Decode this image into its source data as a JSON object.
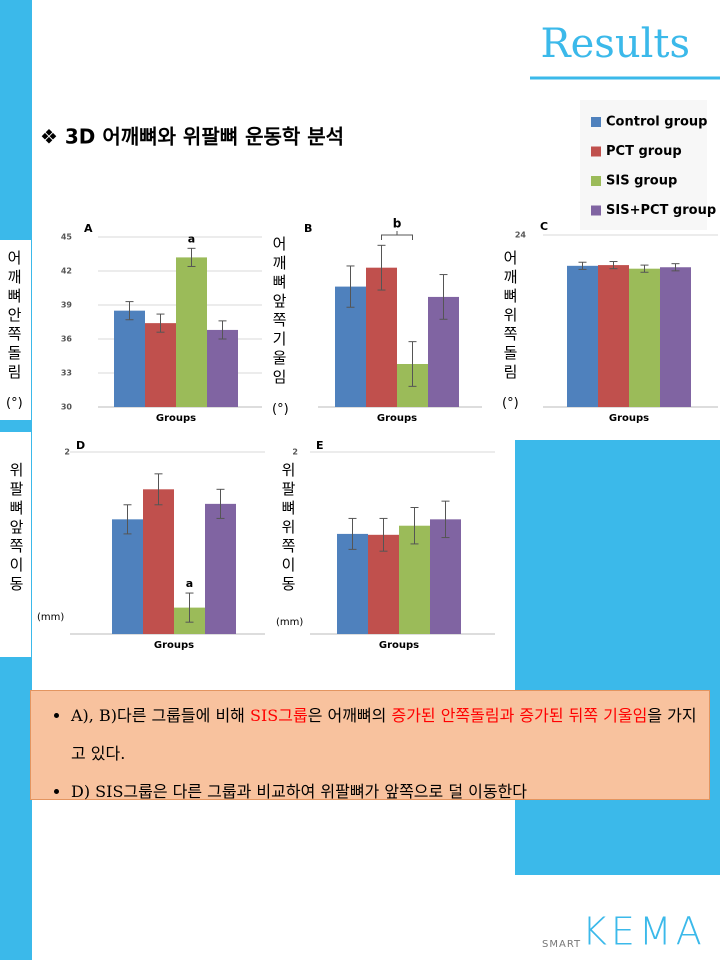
{
  "header": {
    "title": "Results"
  },
  "heading": "❖ 3D 어깨뼈와 위팔뼈 운동학 분석",
  "groups": [
    {
      "name": "Control group",
      "color": "#4f81bd"
    },
    {
      "name": "PCT group",
      "color": "#c0504d"
    },
    {
      "name": "SIS group",
      "color": "#9bbb59"
    },
    {
      "name": "SIS+PCT group",
      "color": "#8064a2"
    }
  ],
  "chart_data": [
    {
      "type": "bar",
      "panel": "A",
      "ylabel": "어깨뼈안쪽돌림",
      "yunit": "(°)",
      "xlabel": "Groups",
      "values": [
        38.5,
        37.4,
        43.2,
        36.8
      ],
      "errors": [
        0.8,
        0.8,
        0.8,
        0.8
      ],
      "ylim": [
        30,
        45
      ],
      "yticks": [
        30,
        33,
        36,
        39,
        42,
        45
      ],
      "grid": true,
      "annotations": [
        {
          "text": "a",
          "groups": [
            2
          ]
        }
      ]
    },
    {
      "type": "bar",
      "panel": "B",
      "ylabel": "어깨뼈앞쪽기울임",
      "yunit": "(°)",
      "xlabel": "Groups",
      "values": [
        7.0,
        8.1,
        2.5,
        6.4
      ],
      "errors": [
        1.2,
        1.3,
        1.3,
        1.3
      ],
      "ylim": [
        0,
        10
      ],
      "yticks": [],
      "grid": true,
      "annotations": [
        {
          "text": "b",
          "groups": [
            1,
            2
          ]
        }
      ]
    },
    {
      "type": "bar",
      "panel": "C",
      "ylabel": "어깨뼈위쪽돌림",
      "yunit": "(°)",
      "xlabel": "Groups",
      "values": [
        19.7,
        19.8,
        19.3,
        19.5
      ],
      "errors": [
        0.5,
        0.5,
        0.5,
        0.5
      ],
      "ylim": [
        0,
        24
      ],
      "yticks": [
        24
      ],
      "grid": true,
      "annotations": []
    },
    {
      "type": "bar",
      "panel": "D",
      "ylabel": "위팔뼈앞쪽이동",
      "yunit": "(mm)",
      "xlabel": "Groups",
      "values": [
        1.26,
        1.59,
        0.29,
        1.43
      ],
      "errors": [
        0.16,
        0.17,
        0.16,
        0.16
      ],
      "ylim": [
        0,
        2
      ],
      "yticks": [
        2
      ],
      "grid": true,
      "annotations": [
        {
          "text": "a",
          "groups": [
            2
          ]
        }
      ]
    },
    {
      "type": "bar",
      "panel": "E",
      "ylabel": "위팔뼈위쪽이동",
      "yunit": "(mm)",
      "xlabel": "Groups",
      "values": [
        1.1,
        1.09,
        1.19,
        1.26
      ],
      "errors": [
        0.17,
        0.18,
        0.2,
        0.2
      ],
      "ylim": [
        0,
        2
      ],
      "yticks": [
        2
      ],
      "grid": true,
      "annotations": []
    }
  ],
  "bullets": [
    [
      {
        "text": "A), B)다른 그룹들에 비해 "
      },
      {
        "text": "SIS그룹",
        "highlight": true
      },
      {
        "text": "은 어깨뼈의 "
      },
      {
        "text": "증가된 안쪽돌림과 증가된 뒤쪽 기울임",
        "highlight": true
      },
      {
        "text": "을 가지고 있다."
      }
    ],
    [
      {
        "text": "D) SIS그룹은 다른 그룹과 비교하여 위팔뼈가 앞쪽으로 덜 이동한다"
      }
    ]
  ],
  "logo": {
    "prefix": "SMART",
    "name": "KEMA"
  }
}
